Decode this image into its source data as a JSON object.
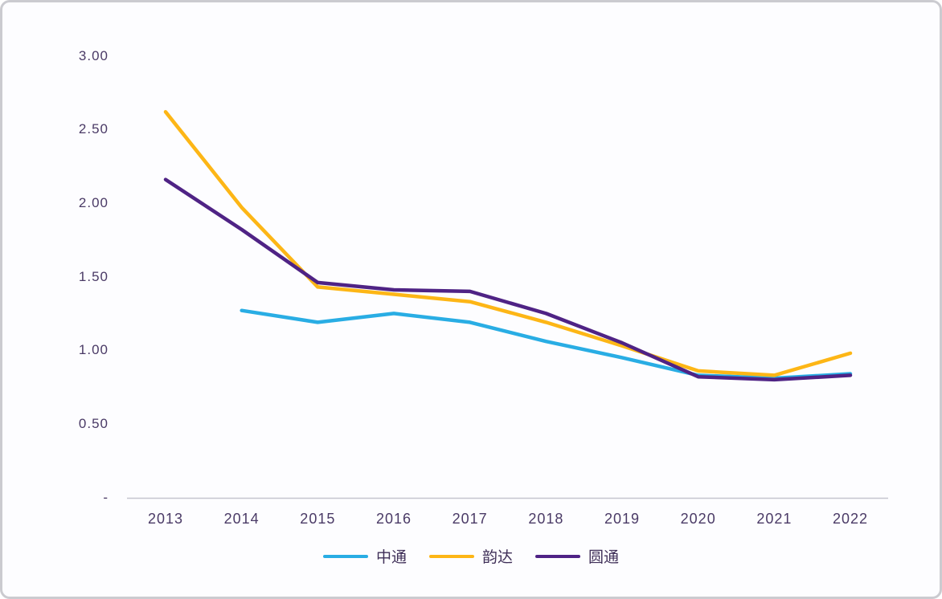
{
  "chart_data": {
    "type": "line",
    "title": "",
    "xlabel": "",
    "ylabel": "",
    "categories": [
      "2013",
      "2014",
      "2015",
      "2016",
      "2017",
      "2018",
      "2019",
      "2020",
      "2021",
      "2022"
    ],
    "series": [
      {
        "name": "中通",
        "color": "#29ade4",
        "values": [
          null,
          1.27,
          1.19,
          1.25,
          1.19,
          1.06,
          0.95,
          0.83,
          0.81,
          0.84
        ]
      },
      {
        "name": "韵达",
        "color": "#fdb616",
        "values": [
          2.62,
          1.97,
          1.43,
          1.38,
          1.33,
          1.19,
          1.03,
          0.86,
          0.83,
          0.98
        ]
      },
      {
        "name": "圆通",
        "color": "#4f2385",
        "values": [
          2.16,
          1.82,
          1.46,
          1.41,
          1.4,
          1.25,
          1.05,
          0.82,
          0.8,
          0.83
        ]
      }
    ],
    "yticks": [
      {
        "label": "3.00",
        "value": 3.0
      },
      {
        "label": "2.50",
        "value": 2.5
      },
      {
        "label": "2.00",
        "value": 2.0
      },
      {
        "label": "1.50",
        "value": 1.5
      },
      {
        "label": "1.00",
        "value": 1.0
      },
      {
        "label": "0.50",
        "value": 0.5
      },
      {
        "label": "-",
        "value": 0.0
      }
    ],
    "ylim": [
      0,
      3.0
    ],
    "grid": false,
    "legend_position": "bottom",
    "axis_color": "#c6c6cf",
    "text_color": "#4a3a66"
  }
}
